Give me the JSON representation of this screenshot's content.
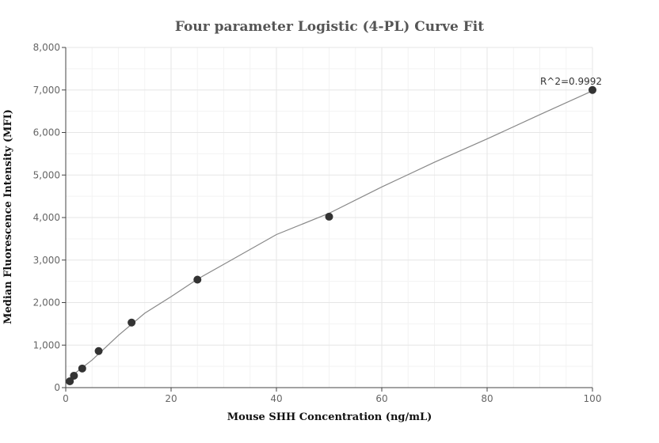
{
  "chart_data": {
    "type": "scatter",
    "title": "Four parameter Logistic (4-PL) Curve Fit",
    "xlabel": "Mouse SHH Concentration (ng/mL)",
    "ylabel": "Median Fluorescence Intensity (MFI)",
    "xlim": [
      0,
      100
    ],
    "ylim": [
      0,
      8000
    ],
    "x_ticks": [
      0,
      20,
      40,
      60,
      80,
      100
    ],
    "y_ticks": [
      0,
      1000,
      2000,
      3000,
      4000,
      5000,
      6000,
      7000,
      8000
    ],
    "x_tick_labels": [
      "0",
      "20",
      "40",
      "60",
      "80",
      "100"
    ],
    "y_tick_labels": [
      "0",
      "1,000",
      "2,000",
      "3,000",
      "4,000",
      "5,000",
      "6,000",
      "7,000",
      "8,000"
    ],
    "grid": true,
    "series": [
      {
        "x": [
          0.78,
          1.56,
          3.13,
          6.25,
          12.5,
          25,
          50,
          100
        ],
        "y": [
          150,
          280,
          450,
          860,
          1530,
          2540,
          4020,
          7000
        ],
        "color": "#333333"
      }
    ],
    "fit_curve": {
      "color": "#888888",
      "x": [
        0,
        2,
        5,
        10,
        15,
        20,
        25,
        30,
        40,
        50,
        60,
        70,
        80,
        90,
        100
      ],
      "y": [
        80,
        360,
        650,
        1230,
        1750,
        2140,
        2550,
        2900,
        3600,
        4100,
        4720,
        5300,
        5850,
        6420,
        6980
      ]
    },
    "annotation": {
      "text": "R^2=0.9992"
    }
  }
}
